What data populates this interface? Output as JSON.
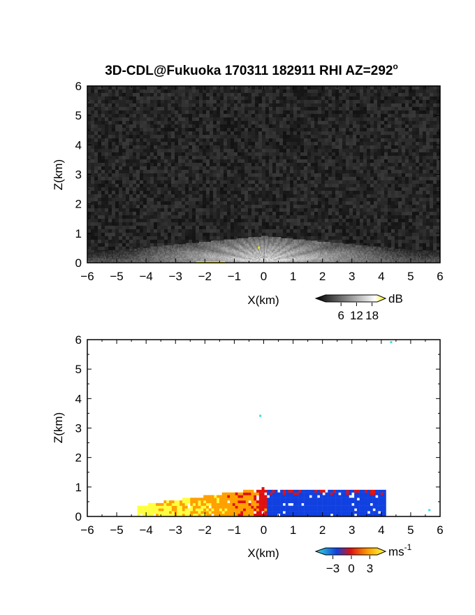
{
  "figure": {
    "title": "3D-CDL@Fukuoka 170311 182911 RHI AZ=292",
    "title_superscript": "o"
  },
  "chart_data": [
    {
      "type": "heatmap",
      "name": "reflectivity-panel",
      "xlabel": "X(km)",
      "ylabel": "Z(km)",
      "xlim": [
        -6,
        6
      ],
      "ylim": [
        0,
        6
      ],
      "xticks": [
        "-6",
        "-5",
        "-4",
        "-3",
        "-2",
        "-1",
        "0",
        "1",
        "2",
        "3",
        "4",
        "5",
        "6"
      ],
      "yticks": [
        "0",
        "1",
        "2",
        "3",
        "4",
        "5",
        "6"
      ],
      "background": "noise",
      "echo_top_km": 0.85,
      "colorbar": {
        "unit": "dB",
        "ticks": [
          6,
          12,
          18
        ],
        "tick_labels": [
          "6",
          "12",
          "18"
        ],
        "range": [
          0,
          20
        ],
        "colors": [
          "#000000",
          "#ffffff",
          "#f0f000"
        ]
      }
    },
    {
      "type": "heatmap",
      "name": "velocity-panel",
      "xlabel": "X(km)",
      "ylabel": "Z(km)",
      "xlim": [
        -6,
        6
      ],
      "ylim": [
        0,
        6
      ],
      "xticks": [
        "-6",
        "-5",
        "-4",
        "-3",
        "-2",
        "-1",
        "0",
        "1",
        "2",
        "3",
        "4",
        "5",
        "6"
      ],
      "yticks": [
        "0",
        "1",
        "2",
        "3",
        "4",
        "5",
        "6"
      ],
      "background": "white",
      "echo_extent_km": [
        -4.3,
        4.1
      ],
      "echo_top_km": 0.95,
      "colorbar": {
        "unit": "ms",
        "unit_superscript": "-1",
        "ticks": [
          -3,
          0,
          3
        ],
        "tick_labels": [
          "−3",
          "0",
          "3"
        ],
        "range": [
          -4.2,
          4.2
        ],
        "colors": [
          "#30e0e0",
          "#1040e0",
          "#e01010",
          "#ffa000",
          "#ffff40"
        ]
      }
    }
  ]
}
